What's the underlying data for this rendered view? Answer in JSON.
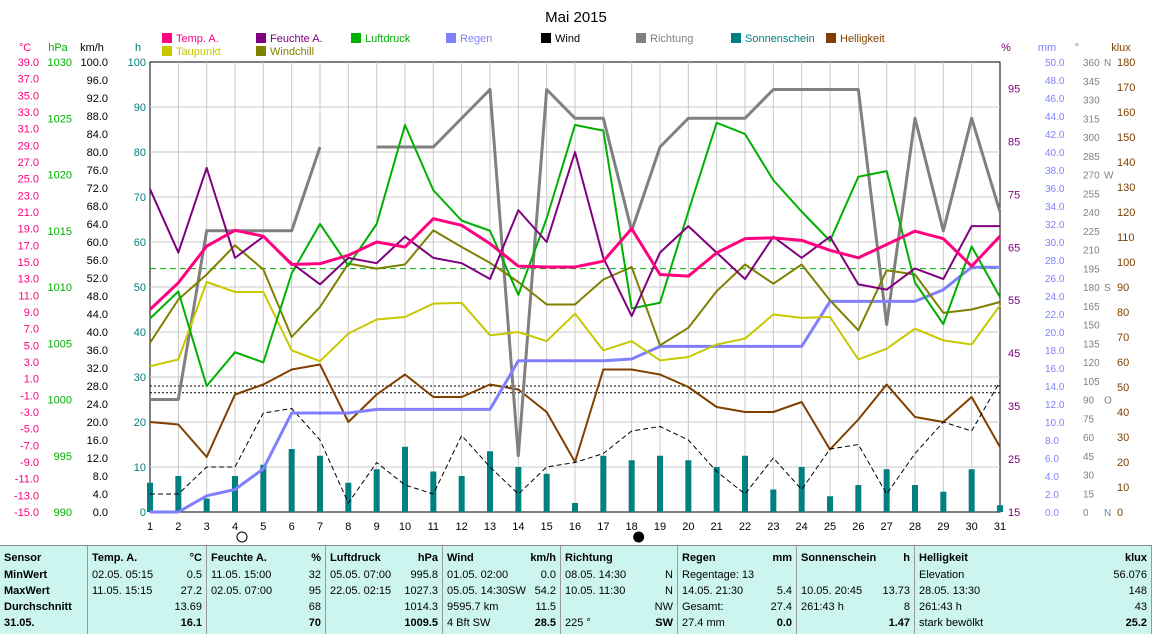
{
  "chart_data": {
    "type": "line",
    "title": "Mai 2015",
    "x": [
      1,
      2,
      3,
      4,
      5,
      6,
      7,
      8,
      9,
      10,
      11,
      12,
      13,
      14,
      15,
      16,
      17,
      18,
      19,
      20,
      21,
      22,
      23,
      24,
      25,
      26,
      27,
      28,
      29,
      30,
      31
    ],
    "x_ticks": [
      "1",
      "2",
      "3",
      "4",
      "5",
      "6",
      "7",
      "8",
      "9",
      "10",
      "11",
      "12",
      "13",
      "14",
      "15",
      "16",
      "17",
      "18",
      "19",
      "20",
      "21",
      "22",
      "23",
      "24",
      "25",
      "26",
      "27",
      "28",
      "29",
      "30",
      "31"
    ],
    "legend": [
      {
        "name": "Temp. A.",
        "color": "#ff0080"
      },
      {
        "name": "Feuchte A.",
        "color": "#800080"
      },
      {
        "name": "Luftdruck",
        "color": "#00b000"
      },
      {
        "name": "Regen",
        "color": "#8080ff"
      },
      {
        "name": "Wind",
        "color": "#000000"
      },
      {
        "name": "Richtung",
        "color": "#808080"
      },
      {
        "name": "Sonnenschein",
        "color": "#008080"
      },
      {
        "name": "Helligkeit",
        "color": "#804000"
      },
      {
        "name": "Taupunkt",
        "color": "#c8c800"
      },
      {
        "name": "Windchill",
        "color": "#808000"
      }
    ],
    "axes": {
      "temp_c": {
        "label": "°C",
        "color": "#ff0080",
        "ticks": [
          "39.0",
          "37.0",
          "35.0",
          "33.0",
          "31.0",
          "29.0",
          "27.0",
          "25.0",
          "23.0",
          "21.0",
          "19.0",
          "17.0",
          "15.0",
          "13.0",
          "11.0",
          "9.0",
          "7.0",
          "5.0",
          "3.0",
          "1.0",
          "-1.0",
          "-3.0",
          "-5.0",
          "-7.0",
          "-9.0",
          "-11.0",
          "-13.0",
          "-15.0"
        ],
        "range": [
          -15,
          39
        ]
      },
      "pressure_hpa": {
        "label": "hPa",
        "color": "#00b000",
        "ticks": [
          "1030",
          "1025",
          "1020",
          "1015",
          "1010",
          "1005",
          "1000",
          "995",
          "990"
        ],
        "range": [
          990,
          1030
        ]
      },
      "wind_kmh": {
        "label": "km/h",
        "color": "#000000",
        "ticks": [
          "100.0",
          "96.0",
          "92.0",
          "88.0",
          "84.0",
          "80.0",
          "76.0",
          "72.0",
          "68.0",
          "64.0",
          "60.0",
          "56.0",
          "52.0",
          "48.0",
          "44.0",
          "40.0",
          "36.0",
          "32.0",
          "28.0",
          "24.0",
          "20.0",
          "16.0",
          "12.0",
          "8.0",
          "4.0",
          "0.0"
        ],
        "range": [
          0,
          100
        ]
      },
      "sun_h": {
        "label": "h",
        "color": "#008080",
        "ticks": [
          "100",
          "90",
          "80",
          "70",
          "60",
          "50",
          "40",
          "30",
          "20",
          "10",
          "0"
        ],
        "range": [
          0,
          100
        ]
      },
      "humidity_pct": {
        "label": "%",
        "color": "#800080",
        "ticks": [
          "95",
          "85",
          "75",
          "65",
          "55",
          "45",
          "35",
          "25",
          "15"
        ],
        "range": [
          15,
          100
        ]
      },
      "rain_mm": {
        "label": "mm",
        "color": "#8080ff",
        "ticks": [
          "50.0",
          "48.0",
          "46.0",
          "44.0",
          "42.0",
          "40.0",
          "38.0",
          "36.0",
          "34.0",
          "32.0",
          "30.0",
          "28.0",
          "26.0",
          "24.0",
          "22.0",
          "20.0",
          "18.0",
          "16.0",
          "14.0",
          "12.0",
          "10.0",
          "8.0",
          "6.0",
          "4.0",
          "2.0",
          "0.0"
        ],
        "range": [
          0,
          50
        ]
      },
      "direction_deg": {
        "label": "°",
        "color": "#808080",
        "ticks": [
          "360",
          "345",
          "330",
          "315",
          "300",
          "285",
          "270",
          "255",
          "240",
          "225",
          "210",
          "195",
          "180",
          "165",
          "150",
          "135",
          "120",
          "105",
          "90",
          "75",
          "60",
          "45",
          "30",
          "15",
          "0"
        ],
        "compass": [
          {
            "label": "N",
            "deg": 360
          },
          {
            "label": "W",
            "deg": 270
          },
          {
            "label": "S",
            "deg": 180
          },
          {
            "label": "O",
            "deg": 90
          },
          {
            "label": "N",
            "deg": 0
          }
        ],
        "range": [
          0,
          360
        ]
      },
      "lux_klux": {
        "label": "klux",
        "color": "#804000",
        "ticks": [
          "180",
          "170",
          "160",
          "150",
          "140",
          "130",
          "120",
          "110",
          "100",
          "90",
          "80",
          "70",
          "60",
          "50",
          "40",
          "30",
          "20",
          "10",
          "0"
        ],
        "range": [
          0,
          180
        ]
      }
    },
    "series": [
      {
        "name": "Temp. A.",
        "axis": "temp_c",
        "color": "#ff0080",
        "width": 3,
        "values": [
          9.3,
          12.5,
          16.9,
          18.8,
          18.1,
          14.7,
          14.8,
          15.8,
          17.4,
          16.8,
          20.2,
          19.4,
          17.2,
          14.5,
          14.4,
          14.4,
          15.1,
          19.0,
          13.5,
          13.3,
          16.1,
          17.8,
          17.9,
          17.6,
          16.4,
          15.5,
          17.1,
          18.7,
          17.8,
          14.5,
          18.1
        ]
      },
      {
        "name": "Feuchte A.",
        "axis": "humidity_pct",
        "color": "#800080",
        "width": 2,
        "values": [
          76,
          64,
          80,
          63,
          67,
          62,
          58,
          63,
          62,
          67,
          63,
          62,
          59,
          72,
          66,
          83,
          63,
          52,
          64,
          69,
          64,
          59,
          67,
          63,
          67,
          58,
          57,
          61,
          59,
          69,
          69
        ]
      },
      {
        "name": "Luftdruck",
        "axis": "pressure_hpa",
        "color": "#00b000",
        "width": 2,
        "values": [
          1007.2,
          1009.6,
          1001.2,
          1004.2,
          1003.3,
          1011.2,
          1015.6,
          1011.9,
          1015.6,
          1024.4,
          1018.6,
          1015.9,
          1015.0,
          1009.3,
          1016.1,
          1024.4,
          1023.9,
          1008.1,
          1008.6,
          1016.7,
          1024.6,
          1023.6,
          1019.5,
          1016.7,
          1014.1,
          1019.8,
          1020.3,
          1010.4,
          1006.7,
          1013.6,
          1009.1
        ]
      },
      {
        "name": "Regen",
        "axis": "rain_mm",
        "color": "#8080ff",
        "width": 3,
        "values": [
          0,
          0,
          1.8,
          2.5,
          4.8,
          11.0,
          11.0,
          11.0,
          11.4,
          11.4,
          11.4,
          11.4,
          11.4,
          16.8,
          16.8,
          16.8,
          16.8,
          17.0,
          18.4,
          18.4,
          18.4,
          18.4,
          18.4,
          18.4,
          23.4,
          23.4,
          23.4,
          23.4,
          24.7,
          27.2,
          27.2
        ]
      },
      {
        "name": "Wind",
        "axis": "wind_kmh",
        "color": "#000000",
        "width": 1,
        "dashed": true,
        "values": [
          4,
          4,
          10,
          10,
          22,
          23,
          16,
          2,
          11,
          6,
          4,
          17,
          10,
          4,
          10,
          11,
          13,
          18,
          19,
          16,
          9,
          4,
          12,
          5,
          14,
          15,
          4,
          13,
          20,
          18,
          29
        ]
      },
      {
        "name": "Richtung",
        "axis": "direction_deg",
        "color": "#808080",
        "width": 3,
        "values": [
          90,
          90,
          225,
          225,
          225,
          225,
          292,
          null,
          292,
          292,
          292,
          315,
          338,
          45,
          338,
          315,
          315,
          225,
          292,
          315,
          315,
          315,
          338,
          338,
          338,
          338,
          150,
          315,
          225,
          315,
          240
        ]
      },
      {
        "name": "Sonnenschein",
        "axis": "sun_h",
        "color": "#008080",
        "type": "bar",
        "values": [
          6.5,
          8,
          3,
          8,
          10.5,
          14,
          12.5,
          6.5,
          9.5,
          14.5,
          9,
          8,
          13.5,
          10,
          8.5,
          2,
          12.5,
          11.5,
          12.5,
          11.5,
          10,
          12.5,
          5,
          10,
          3.5,
          6,
          9.5,
          6,
          4.5,
          9.5,
          1.5
        ]
      },
      {
        "name": "Helligkeit",
        "axis": "lux_klux",
        "color": "#804000",
        "width": 2,
        "values": [
          36,
          35,
          22,
          47,
          51,
          57,
          59,
          36,
          47,
          55,
          46,
          46,
          51,
          49,
          40,
          20,
          57,
          57,
          55,
          50,
          42,
          40,
          40,
          44,
          25,
          37,
          51,
          38,
          36,
          46,
          26
        ]
      },
      {
        "name": "Taupunkt",
        "axis": "temp_c",
        "color": "#c8c800",
        "width": 2,
        "values": [
          2.5,
          3.3,
          12.6,
          11.4,
          11.4,
          4.4,
          3.1,
          6.4,
          8.1,
          8.4,
          10.0,
          10.1,
          6.2,
          6.6,
          5.5,
          8.8,
          4.4,
          5.5,
          3.2,
          3.6,
          5.1,
          5.8,
          8.7,
          8.3,
          8.4,
          3.3,
          4.6,
          7.0,
          5.6,
          5.1,
          9.8
        ]
      },
      {
        "name": "Windchill",
        "axis": "temp_c",
        "color": "#808000",
        "width": 2,
        "values": [
          5.3,
          10.5,
          13.5,
          17.0,
          14.1,
          6.0,
          9.6,
          14.8,
          14.2,
          14.7,
          18.8,
          16.8,
          14.9,
          12.6,
          9.9,
          9.9,
          12.9,
          14.4,
          5.0,
          7.1,
          11.5,
          14.7,
          12.4,
          14.7,
          10.4,
          6.8,
          14.0,
          13.5,
          8.9,
          9.3,
          10.2
        ]
      }
    ],
    "xlabel": "",
    "grid": true,
    "legend_position": "top"
  },
  "summary": {
    "row_labels": [
      "Sensor",
      "MinWert",
      "MaxWert",
      "Durchschnitt",
      "31.05."
    ],
    "columns": [
      {
        "name": "Temp. A.",
        "unit": "°C",
        "rows": [
          [
            "02.05.  05:15",
            "0.5"
          ],
          [
            "11.05.  15:15",
            "27.2"
          ],
          [
            "",
            "13.69"
          ],
          [
            "",
            "16.1"
          ]
        ]
      },
      {
        "name": "Feuchte A.",
        "unit": "%",
        "rows": [
          [
            "11.05.  15:00",
            "32"
          ],
          [
            "02.05.  07:00",
            "95"
          ],
          [
            "",
            "68"
          ],
          [
            "",
            "70"
          ]
        ]
      },
      {
        "name": "Luftdruck",
        "unit": "hPa",
        "rows": [
          [
            "05.05.  07:00",
            "995.8"
          ],
          [
            "22.05.  02:15",
            "1027.3"
          ],
          [
            "",
            "1014.3"
          ],
          [
            "",
            "1009.5"
          ]
        ]
      },
      {
        "name": "Wind",
        "unit": "km/h",
        "rows": [
          [
            "01.05.  02:00",
            "0.0"
          ],
          [
            "05.05.  14:30SW",
            "54.2"
          ],
          [
            "9595.7 km",
            "11.5"
          ],
          [
            "4 Bft SW",
            "28.5"
          ]
        ]
      },
      {
        "name": "Richtung",
        "unit": "",
        "rows": [
          [
            "08.05.  14:30",
            "N"
          ],
          [
            "10.05.  11:30",
            "N"
          ],
          [
            "",
            "NW"
          ],
          [
            "225 °",
            "SW"
          ]
        ]
      },
      {
        "name": "Regen",
        "unit": "mm",
        "rows": [
          [
            "Regentage: 13",
            ""
          ],
          [
            "14.05.  21:30",
            "5.4"
          ],
          [
            "Gesamt:",
            "27.4"
          ],
          [
            "27.4 mm",
            "0.0"
          ]
        ]
      },
      {
        "name": "Sonnenschein",
        "unit": "h",
        "rows": [
          [
            "",
            ""
          ],
          [
            "10.05.  20:45",
            "13.73"
          ],
          [
            "261:43 h",
            "8"
          ],
          [
            "",
            "1.47"
          ]
        ]
      },
      {
        "name": "Helligkeit",
        "unit": "klux",
        "rows": [
          [
            "Elevation",
            "56.076"
          ],
          [
            "28.05.  13:30",
            "148"
          ],
          [
            "261:43 h",
            "43"
          ],
          [
            "stark bewölkt",
            "25.2"
          ]
        ]
      }
    ]
  }
}
